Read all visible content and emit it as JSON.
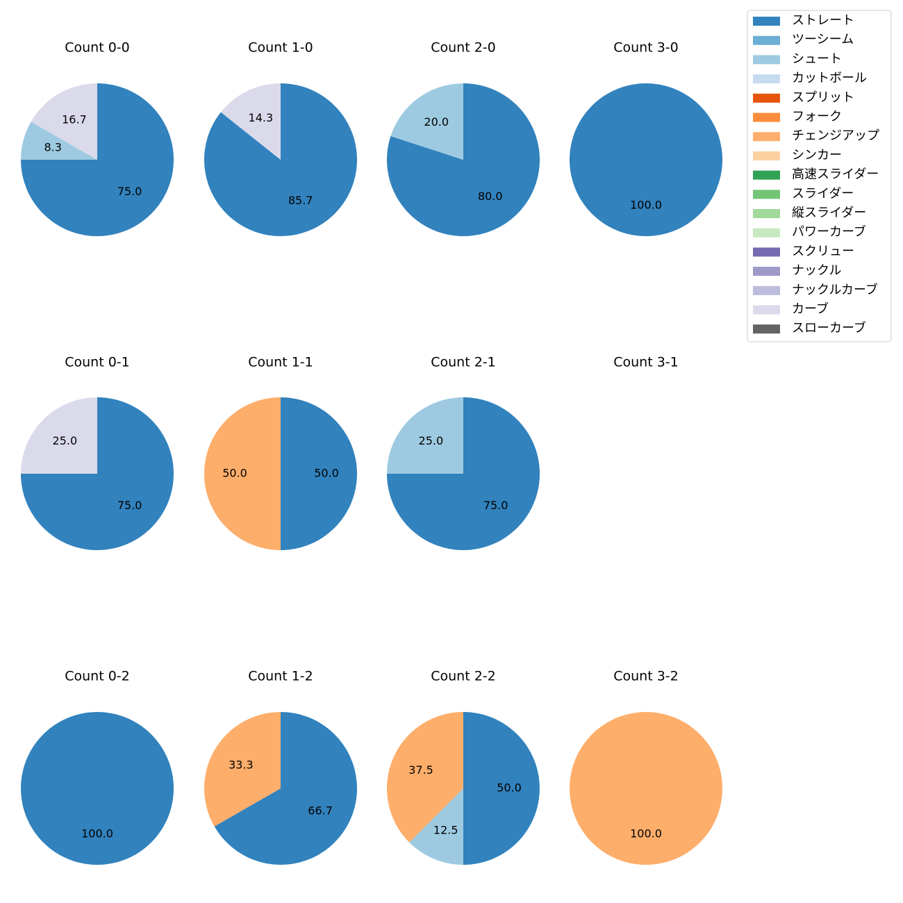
{
  "chart_data": {
    "type": "pie",
    "legend_position": "top-right",
    "legend": [
      {
        "label": "ストレート",
        "color": "#3182bd"
      },
      {
        "label": "ツーシーム",
        "color": "#6baed6"
      },
      {
        "label": "シュート",
        "color": "#9ecae1"
      },
      {
        "label": "カットボール",
        "color": "#c6dbef"
      },
      {
        "label": "スプリット",
        "color": "#e6550d"
      },
      {
        "label": "フォーク",
        "color": "#fd8d3c"
      },
      {
        "label": "チェンジアップ",
        "color": "#fdae6b"
      },
      {
        "label": "シンカー",
        "color": "#fdd0a2"
      },
      {
        "label": "高速スライダー",
        "color": "#31a354"
      },
      {
        "label": "スライダー",
        "color": "#74c476"
      },
      {
        "label": "縦スライダー",
        "color": "#a1d99b"
      },
      {
        "label": "パワーカーブ",
        "color": "#c7e9c0"
      },
      {
        "label": "スクリュー",
        "color": "#756bb1"
      },
      {
        "label": "ナックル",
        "color": "#9e9ac8"
      },
      {
        "label": "ナックルカーブ",
        "color": "#bcbddc"
      },
      {
        "label": "カーブ",
        "color": "#dadaeb"
      },
      {
        "label": "スローカーブ",
        "color": "#636363"
      }
    ],
    "charts": [
      {
        "title": "Count 0-0",
        "slices": [
          {
            "pitch": "ストレート",
            "value": 75.0,
            "label": "75.0"
          },
          {
            "pitch": "シュート",
            "value": 8.3,
            "label": "8.3"
          },
          {
            "pitch": "カーブ",
            "value": 16.7,
            "label": "16.7"
          }
        ]
      },
      {
        "title": "Count 1-0",
        "slices": [
          {
            "pitch": "ストレート",
            "value": 85.7,
            "label": "85.7"
          },
          {
            "pitch": "カーブ",
            "value": 14.3,
            "label": "14.3"
          }
        ]
      },
      {
        "title": "Count 2-0",
        "slices": [
          {
            "pitch": "ストレート",
            "value": 80.0,
            "label": "80.0"
          },
          {
            "pitch": "シュート",
            "value": 20.0,
            "label": "20.0"
          }
        ]
      },
      {
        "title": "Count 3-0",
        "slices": [
          {
            "pitch": "ストレート",
            "value": 100.0,
            "label": "100.0"
          }
        ]
      },
      {
        "title": "Count 0-1",
        "slices": [
          {
            "pitch": "ストレート",
            "value": 75.0,
            "label": "75.0"
          },
          {
            "pitch": "カーブ",
            "value": 25.0,
            "label": "25.0"
          }
        ]
      },
      {
        "title": "Count 1-1",
        "slices": [
          {
            "pitch": "ストレート",
            "value": 50.0,
            "label": "50.0"
          },
          {
            "pitch": "チェンジアップ",
            "value": 50.0,
            "label": "50.0"
          }
        ]
      },
      {
        "title": "Count 2-1",
        "slices": [
          {
            "pitch": "ストレート",
            "value": 75.0,
            "label": "75.0"
          },
          {
            "pitch": "シュート",
            "value": 25.0,
            "label": "25.0"
          }
        ]
      },
      {
        "title": "Count 3-1",
        "slices": []
      },
      {
        "title": "Count 0-2",
        "slices": [
          {
            "pitch": "ストレート",
            "value": 100.0,
            "label": "100.0"
          }
        ]
      },
      {
        "title": "Count 1-2",
        "slices": [
          {
            "pitch": "ストレート",
            "value": 66.7,
            "label": "66.7"
          },
          {
            "pitch": "チェンジアップ",
            "value": 33.3,
            "label": "33.3"
          }
        ]
      },
      {
        "title": "Count 2-2",
        "slices": [
          {
            "pitch": "ストレート",
            "value": 50.0,
            "label": "50.0"
          },
          {
            "pitch": "シュート",
            "value": 12.5,
            "label": "12.5"
          },
          {
            "pitch": "チェンジアップ",
            "value": 37.5,
            "label": "37.5"
          }
        ]
      },
      {
        "title": "Count 3-2",
        "slices": [
          {
            "pitch": "チェンジアップ",
            "value": 100.0,
            "label": "100.0"
          }
        ]
      }
    ]
  }
}
